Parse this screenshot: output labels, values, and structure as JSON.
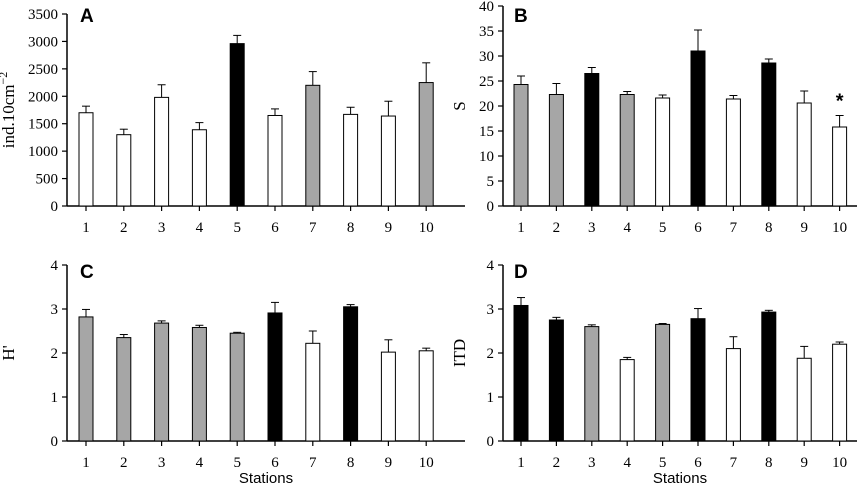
{
  "colors": {
    "white": "#ffffff",
    "gray": "#a6a6a6",
    "black": "#000000"
  },
  "chart_data": [
    {
      "panel": "A",
      "type": "bar",
      "ylabel": "ind.10cm",
      "ylabel_sup": "−2",
      "xlabel": "",
      "ylim": [
        0,
        3500
      ],
      "yticks": [
        "0",
        "500",
        "1000",
        "1500",
        "2000",
        "2500",
        "3000",
        "3500"
      ],
      "categories": [
        "1",
        "2",
        "3",
        "4",
        "5",
        "6",
        "7",
        "8",
        "9",
        "10"
      ],
      "values": [
        1700,
        1300,
        1980,
        1390,
        2960,
        1650,
        2200,
        1670,
        1640,
        2250
      ],
      "errors": [
        120,
        100,
        230,
        130,
        150,
        120,
        250,
        130,
        270,
        360
      ],
      "fills": [
        "white",
        "white",
        "white",
        "white",
        "black",
        "white",
        "gray",
        "white",
        "white",
        "gray"
      ],
      "annotations": []
    },
    {
      "panel": "B",
      "type": "bar",
      "ylabel": "S",
      "ylabel_sup": "",
      "xlabel": "",
      "ylim": [
        0,
        40
      ],
      "yticks": [
        "0",
        "5",
        "10",
        "15",
        "20",
        "25",
        "30",
        "35",
        "40"
      ],
      "categories": [
        "1",
        "2",
        "3",
        "4",
        "5",
        "6",
        "7",
        "8",
        "9",
        "10"
      ],
      "values": [
        24.3,
        22.3,
        26.5,
        22.3,
        21.6,
        31.0,
        21.4,
        28.6,
        20.6,
        15.8
      ],
      "errors": [
        1.7,
        2.2,
        1.2,
        0.6,
        0.6,
        4.2,
        0.7,
        0.8,
        2.4,
        2.3
      ],
      "fills": [
        "gray",
        "gray",
        "black",
        "gray",
        "white",
        "black",
        "white",
        "black",
        "white",
        "white"
      ],
      "annotations": [
        {
          "index": 9,
          "text": "*"
        }
      ]
    },
    {
      "panel": "C",
      "type": "bar",
      "ylabel": "H'",
      "ylabel_sup": "",
      "xlabel": "Stations",
      "ylim": [
        0,
        4
      ],
      "yticks": [
        "0",
        "1",
        "2",
        "3",
        "4"
      ],
      "categories": [
        "1",
        "2",
        "3",
        "4",
        "5",
        "6",
        "7",
        "8",
        "9",
        "10"
      ],
      "values": [
        2.82,
        2.35,
        2.68,
        2.58,
        2.45,
        2.91,
        2.22,
        3.05,
        2.02,
        2.05
      ],
      "errors": [
        0.17,
        0.07,
        0.05,
        0.05,
        0.02,
        0.24,
        0.28,
        0.05,
        0.28,
        0.06
      ],
      "fills": [
        "gray",
        "gray",
        "gray",
        "gray",
        "gray",
        "black",
        "white",
        "black",
        "white",
        "white"
      ],
      "annotations": []
    },
    {
      "panel": "D",
      "type": "bar",
      "ylabel": "ITD",
      "ylabel_sup": "",
      "xlabel": "Stations",
      "ylim": [
        0,
        4
      ],
      "yticks": [
        "0",
        "1",
        "2",
        "3",
        "4"
      ],
      "categories": [
        "1",
        "2",
        "3",
        "4",
        "5",
        "6",
        "7",
        "8",
        "9",
        "10"
      ],
      "values": [
        3.08,
        2.75,
        2.6,
        1.85,
        2.65,
        2.78,
        2.1,
        2.93,
        1.88,
        2.2
      ],
      "errors": [
        0.18,
        0.06,
        0.04,
        0.05,
        0.02,
        0.23,
        0.27,
        0.04,
        0.27,
        0.05
      ],
      "fills": [
        "black",
        "black",
        "gray",
        "white",
        "gray",
        "black",
        "white",
        "black",
        "white",
        "white"
      ],
      "annotations": []
    }
  ]
}
